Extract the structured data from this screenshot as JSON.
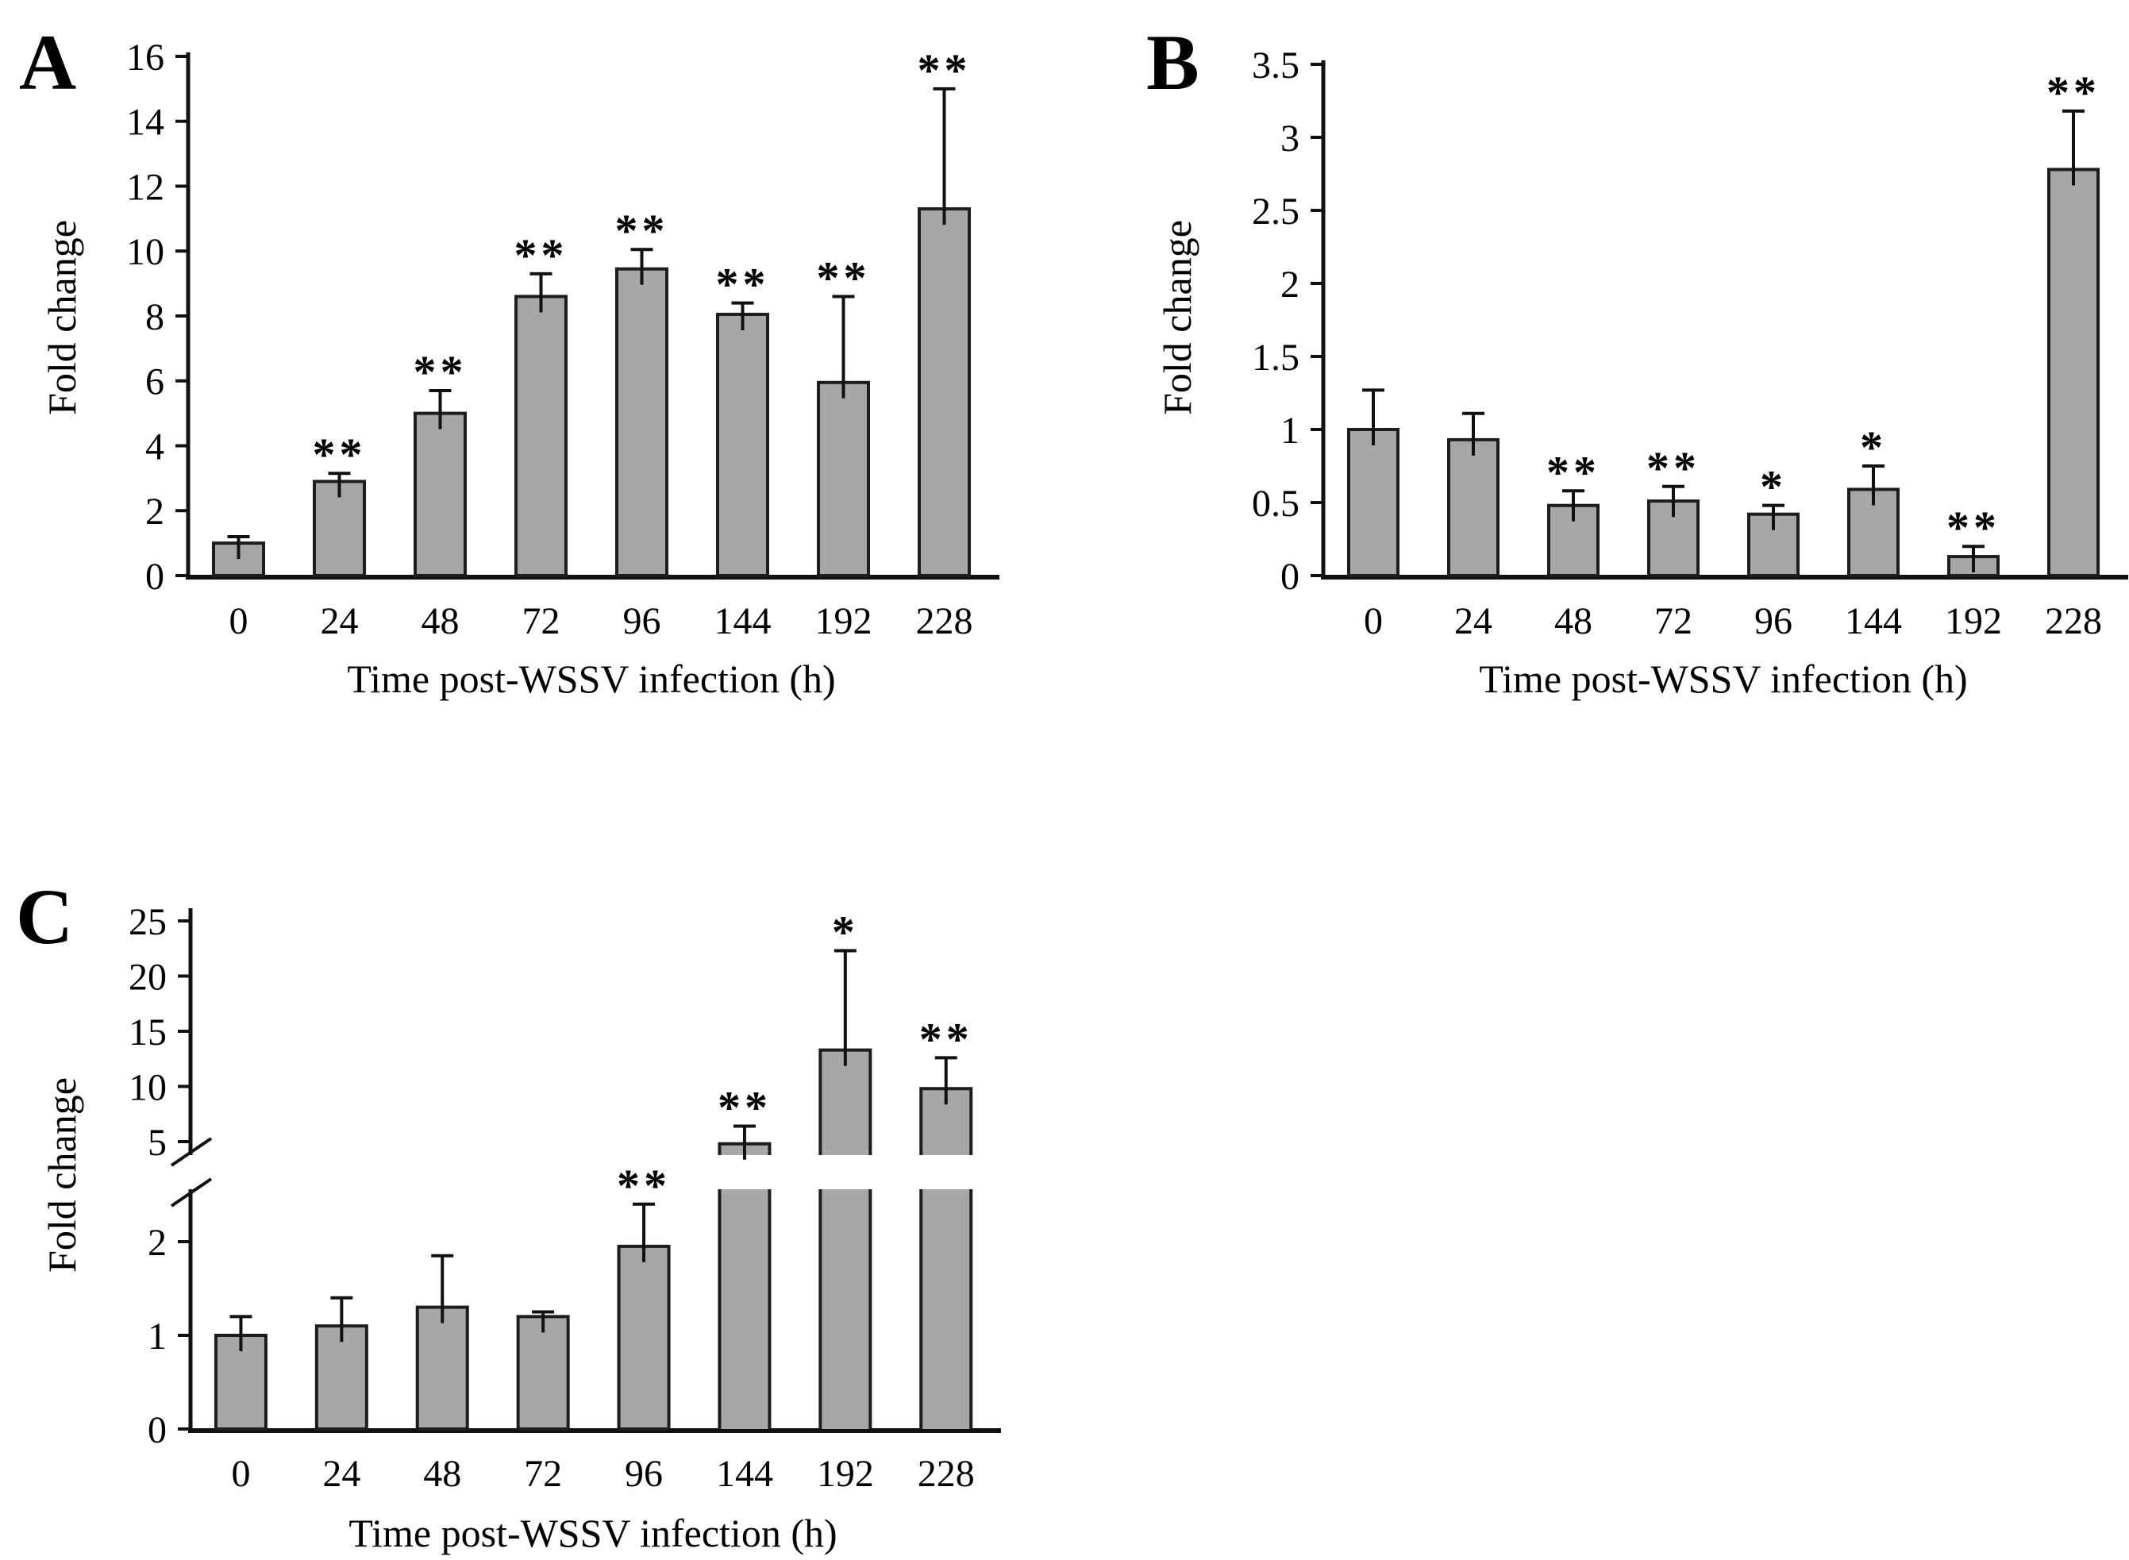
{
  "figure": {
    "description_visible_text_only": true,
    "panel_letters": [
      "A",
      "B",
      "C"
    ],
    "shared_xlabel": "Time post-WSSV infection (h)",
    "shared_ylabel": "Fold change"
  },
  "colors": {
    "background": "#ffffff",
    "bar_fill": "#a7a7a9",
    "bar_border": "#1d1d1d",
    "axis": "#111111",
    "text": "#000000"
  },
  "chart_data": [
    {
      "type": "bar",
      "panel_label": "A",
      "title": "",
      "xlabel": "Time post-WSSV infection (h)",
      "ylabel": "Fold change",
      "categories": [
        "0",
        "24",
        "48",
        "72",
        "96",
        "144",
        "192",
        "228"
      ],
      "values": [
        1.0,
        2.9,
        5.0,
        8.6,
        9.45,
        8.05,
        5.95,
        11.3
      ],
      "error_upper": [
        1.2,
        3.15,
        5.7,
        9.3,
        10.05,
        8.4,
        8.6,
        15.0
      ],
      "significance": [
        "",
        "**",
        "**",
        "**",
        "**",
        "**",
        "**",
        "**"
      ],
      "ylim": [
        0,
        16
      ],
      "yticks": [
        0,
        2,
        4,
        6,
        8,
        10,
        12,
        14,
        16
      ],
      "ytick_labels": [
        "0",
        "2",
        "4",
        "6",
        "8",
        "10",
        "12",
        "14",
        "16"
      ],
      "grid": false,
      "legend": null
    },
    {
      "type": "bar",
      "panel_label": "B",
      "title": "",
      "xlabel": "Time post-WSSV infection (h)",
      "ylabel": "Fold change",
      "categories": [
        "0",
        "24",
        "48",
        "72",
        "96",
        "144",
        "192",
        "228"
      ],
      "values": [
        1.0,
        0.93,
        0.48,
        0.51,
        0.42,
        0.59,
        0.13,
        2.78
      ],
      "error_upper": [
        1.27,
        1.11,
        0.58,
        0.61,
        0.48,
        0.75,
        0.2,
        3.18
      ],
      "significance": [
        "",
        "",
        "**",
        "**",
        "*",
        "*",
        "**",
        "**"
      ],
      "ylim": [
        0,
        3.5
      ],
      "yticks": [
        0,
        0.5,
        1,
        1.5,
        2,
        2.5,
        3,
        3.5
      ],
      "ytick_labels": [
        "0",
        "0.5",
        "1",
        "1.5",
        "2",
        "2.5",
        "3",
        "3.5"
      ],
      "grid": false,
      "legend": null
    },
    {
      "type": "bar",
      "panel_label": "C",
      "title": "",
      "xlabel": "Time post-WSSV infection (h)",
      "ylabel": "Fold change",
      "categories": [
        "0",
        "24",
        "48",
        "72",
        "96",
        "144",
        "192",
        "228"
      ],
      "values": [
        1.0,
        1.1,
        1.3,
        1.2,
        1.95,
        4.8,
        13.3,
        9.8
      ],
      "error_upper": [
        1.2,
        1.4,
        1.85,
        1.25,
        2.4,
        6.4,
        22.3,
        12.6
      ],
      "significance": [
        "",
        "",
        "",
        "",
        "**",
        "**",
        "*",
        "**"
      ],
      "axis_break": {
        "lower_range": [
          0,
          2.5
        ],
        "upper_range": [
          5,
          25
        ],
        "lower_ticks": [
          0,
          1,
          2
        ],
        "lower_tick_labels": [
          "0",
          "1",
          "2"
        ],
        "upper_ticks": [
          5,
          10,
          15,
          20,
          25
        ],
        "upper_tick_labels": [
          "5",
          "10",
          "15",
          "20",
          "25"
        ]
      },
      "grid": false,
      "legend": null
    }
  ]
}
